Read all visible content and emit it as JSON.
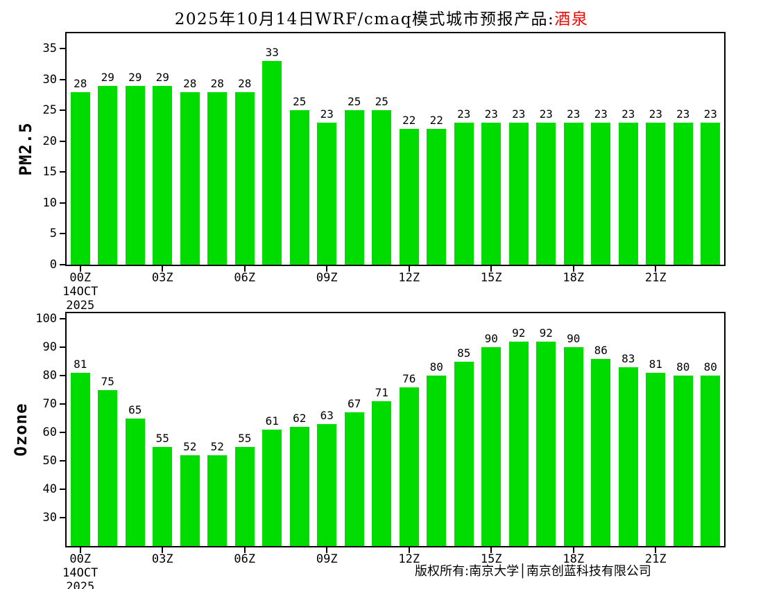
{
  "title": {
    "main": "2025年10月14日WRF/cmaq模式城市预报产品:",
    "city": "酒泉"
  },
  "footer": {
    "copyright": "版权所有:南京大学│南京创蓝科技有限公司"
  },
  "chart_data": [
    {
      "type": "bar",
      "ylabel": "PM2.5",
      "bar_color": "#00dc00",
      "ylim": [
        0,
        37.5
      ],
      "yticks": [
        0,
        5,
        10,
        15,
        20,
        25,
        30,
        35
      ],
      "xticks": [
        {
          "at": 0,
          "lines": [
            "00Z",
            "14OCT",
            "2025"
          ]
        },
        {
          "at": 3,
          "lines": [
            "03Z"
          ]
        },
        {
          "at": 6,
          "lines": [
            "06Z"
          ]
        },
        {
          "at": 9,
          "lines": [
            "09Z"
          ]
        },
        {
          "at": 12,
          "lines": [
            "12Z"
          ]
        },
        {
          "at": 15,
          "lines": [
            "15Z"
          ]
        },
        {
          "at": 18,
          "lines": [
            "18Z"
          ]
        },
        {
          "at": 21,
          "lines": [
            "21Z"
          ]
        }
      ],
      "values": [
        28,
        29,
        29,
        29,
        28,
        28,
        28,
        33,
        25,
        23,
        25,
        25,
        22,
        22,
        23,
        23,
        23,
        23,
        23,
        23,
        23,
        23,
        23,
        23
      ]
    },
    {
      "type": "bar",
      "ylabel": "Ozone",
      "bar_color": "#00dc00",
      "ylim": [
        20,
        102
      ],
      "yticks": [
        30,
        40,
        50,
        60,
        70,
        80,
        90,
        100
      ],
      "xticks": [
        {
          "at": 0,
          "lines": [
            "00Z",
            "14OCT",
            "2025"
          ]
        },
        {
          "at": 3,
          "lines": [
            "03Z"
          ]
        },
        {
          "at": 6,
          "lines": [
            "06Z"
          ]
        },
        {
          "at": 9,
          "lines": [
            "09Z"
          ]
        },
        {
          "at": 12,
          "lines": [
            "12Z"
          ]
        },
        {
          "at": 15,
          "lines": [
            "15Z"
          ]
        },
        {
          "at": 18,
          "lines": [
            "18Z"
          ]
        },
        {
          "at": 21,
          "lines": [
            "21Z"
          ]
        }
      ],
      "values": [
        81,
        75,
        65,
        55,
        52,
        52,
        55,
        61,
        62,
        63,
        67,
        71,
        76,
        80,
        85,
        90,
        92,
        92,
        90,
        86,
        83,
        81,
        80,
        80
      ]
    }
  ]
}
